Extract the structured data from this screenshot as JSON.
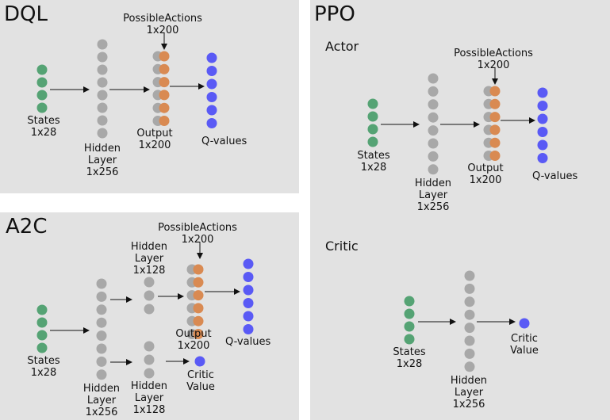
{
  "colors": {
    "state": "#55a374",
    "hidden": "#a8a8a8",
    "action": "#d98a52",
    "qvalue": "#5a5af5",
    "panel": "#e2e2e2"
  },
  "dql": {
    "title": "DQL",
    "states_label": [
      "States",
      "1x28"
    ],
    "hidden_label": [
      "Hidden",
      "Layer",
      "1x256"
    ],
    "output_label": [
      "Output",
      "1x200"
    ],
    "actions_label": [
      "PossibleActions",
      "1x200"
    ],
    "qvalues_label": "Q-values"
  },
  "a2c": {
    "title": "A2C",
    "states_label": [
      "States",
      "1x28"
    ],
    "hidden_label": [
      "Hidden",
      "Layer",
      "1x256"
    ],
    "hidden_top_label": [
      "Hidden",
      "Layer",
      "1x128"
    ],
    "hidden_bottom_label": [
      "Hidden",
      "Layer",
      "1x128"
    ],
    "output_label": [
      "Output",
      "1x200"
    ],
    "actions_label": [
      "PossibleActions",
      "1x200"
    ],
    "qvalues_label": "Q-values",
    "critic_label": [
      "Critic",
      "Value"
    ]
  },
  "ppo": {
    "title": "PPO",
    "actor": {
      "subtitle": "Actor",
      "states_label": [
        "States",
        "1x28"
      ],
      "hidden_label": [
        "Hidden",
        "Layer",
        "1x256"
      ],
      "output_label": [
        "Output",
        "1x200"
      ],
      "actions_label": [
        "PossibleActions",
        "1x200"
      ],
      "qvalues_label": "Q-values"
    },
    "critic": {
      "subtitle": "Critic",
      "states_label": [
        "States",
        "1x28"
      ],
      "hidden_label": [
        "Hidden",
        "Layer",
        "1x256"
      ],
      "critic_label": [
        "Critic",
        "Value"
      ]
    }
  }
}
